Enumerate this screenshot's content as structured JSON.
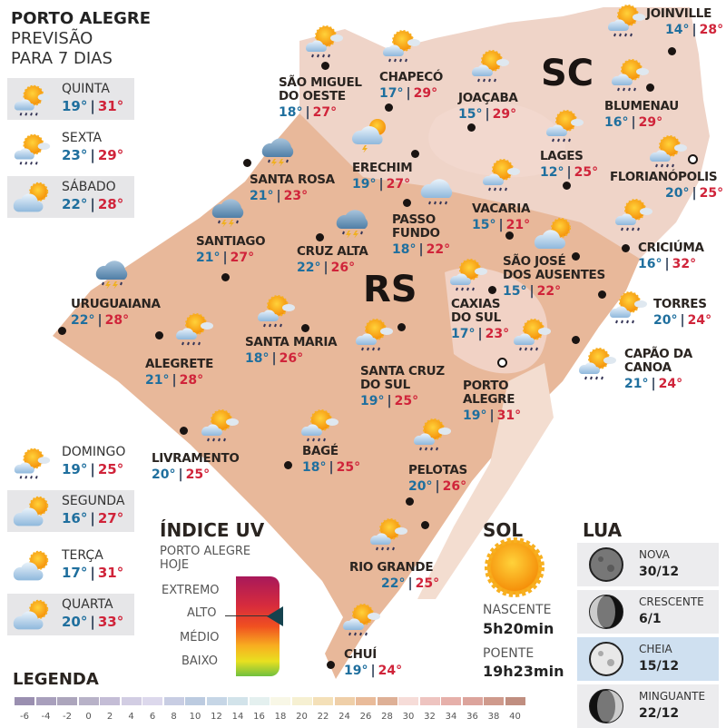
{
  "header": {
    "line1": "PORTO ALEGRE",
    "line2": "PREVISÃO",
    "line3": "PARA 7 DIAS"
  },
  "forecast": [
    {
      "day": "QUINTA",
      "min": "19°",
      "max": "31°",
      "icon": "sun-cloud-rain"
    },
    {
      "day": "SEXTA",
      "min": "23°",
      "max": "29°",
      "icon": "sun-cloud-rain"
    },
    {
      "day": "SÁBADO",
      "min": "22°",
      "max": "28°",
      "icon": "cloud-sun"
    },
    {
      "day": "DOMINGO",
      "min": "19°",
      "max": "25°",
      "icon": "sun-cloud-rain"
    },
    {
      "day": "SEGUNDA",
      "min": "16°",
      "max": "27°",
      "icon": "cloud-sun"
    },
    {
      "day": "TERÇA",
      "min": "17°",
      "max": "31°",
      "icon": "cloud-sun"
    },
    {
      "day": "QUARTA",
      "min": "20°",
      "max": "33°",
      "icon": "cloud-sun"
    }
  ],
  "states": {
    "sc": "SC",
    "rs": "RS"
  },
  "cities": [
    {
      "name": [
        "SÃO MIGUEL",
        "DO OESTE"
      ],
      "min": "18°",
      "max": "27°",
      "icon": "sun-cloud-rain"
    },
    {
      "name": [
        "CHAPECÓ"
      ],
      "min": "17°",
      "max": "29°",
      "icon": "sun-cloud-rain"
    },
    {
      "name": [
        "JOAÇABA"
      ],
      "min": "15°",
      "max": "29°",
      "icon": "sun-cloud-rain"
    },
    {
      "name": [
        "JOINVILLE"
      ],
      "min": "14°",
      "max": "28°",
      "icon": "sun-cloud-rain"
    },
    {
      "name": [
        "BLUMENAU"
      ],
      "min": "16°",
      "max": "29°",
      "icon": "sun-cloud-rain"
    },
    {
      "name": [
        "LAGES"
      ],
      "min": "12°",
      "max": "25°",
      "icon": "sun-cloud-rain"
    },
    {
      "name": [
        "FLORIANÓPOLIS"
      ],
      "min": "20°",
      "max": "25°",
      "icon": "sun-cloud-rain"
    },
    {
      "name": [
        "ERECHIM"
      ],
      "min": "19°",
      "max": "27°",
      "icon": "cloud-sun-storm"
    },
    {
      "name": [
        "SANTA ROSA"
      ],
      "min": "21°",
      "max": "23°",
      "icon": "cloud-storm"
    },
    {
      "name": [
        "PASSO",
        "FUNDO"
      ],
      "min": "18°",
      "max": "22°",
      "icon": "cloud-rain"
    },
    {
      "name": [
        "VACARIA"
      ],
      "min": "15°",
      "max": "21°",
      "icon": "sun-cloud-rain"
    },
    {
      "name": [
        "SANTIAGO"
      ],
      "min": "21°",
      "max": "27°",
      "icon": "cloud-storm"
    },
    {
      "name": [
        "CRUZ ALTA"
      ],
      "min": "22°",
      "max": "26°",
      "icon": "cloud-storm"
    },
    {
      "name": [
        "SÃO JOSÉ",
        "DOS AUSENTES"
      ],
      "min": "15°",
      "max": "22°",
      "icon": "cloud-sun"
    },
    {
      "name": [
        "CRICIÚMA"
      ],
      "min": "16°",
      "max": "32°",
      "icon": "sun-cloud-rain"
    },
    {
      "name": [
        "URUGUAIANA"
      ],
      "min": "22°",
      "max": "28°",
      "icon": "cloud-storm"
    },
    {
      "name": [
        "CAXIAS",
        "DO SUL"
      ],
      "min": "17°",
      "max": "23°",
      "icon": "sun-cloud-rain"
    },
    {
      "name": [
        "TORRES"
      ],
      "min": "20°",
      "max": "24°",
      "icon": "sun-cloud-rain"
    },
    {
      "name": [
        "ALEGRETE"
      ],
      "min": "21°",
      "max": "28°",
      "icon": "sun-cloud-rain"
    },
    {
      "name": [
        "SANTA MARIA"
      ],
      "min": "18°",
      "max": "26°",
      "icon": "sun-cloud-rain"
    },
    {
      "name": [
        "SANTA CRUZ",
        "DO SUL"
      ],
      "min": "19°",
      "max": "25°",
      "icon": "sun-cloud-rain"
    },
    {
      "name": [
        "CAPÃO DA",
        "CANOA"
      ],
      "min": "21°",
      "max": "24°",
      "icon": "sun-cloud-rain"
    },
    {
      "name": [
        "PORTO",
        "ALEGRE"
      ],
      "min": "19°",
      "max": "31°",
      "icon": "sun-cloud-rain"
    },
    {
      "name": [
        "LIVRAMENTO"
      ],
      "min": "20°",
      "max": "25°",
      "icon": "sun-cloud-rain"
    },
    {
      "name": [
        "BAGÉ"
      ],
      "min": "18°",
      "max": "25°",
      "icon": "sun-cloud-rain"
    },
    {
      "name": [
        "PELOTAS"
      ],
      "min": "20°",
      "max": "26°",
      "icon": "sun-cloud-rain"
    },
    {
      "name": [
        "RIO GRANDE"
      ],
      "min": "22°",
      "max": "25°",
      "icon": "sun-cloud-rain"
    },
    {
      "name": [
        "CHUÍ"
      ],
      "min": "19°",
      "max": "24°",
      "icon": "sun-cloud-rain"
    }
  ],
  "uv": {
    "title": "ÍNDICE UV",
    "subtitle1": "PORTO ALEGRE",
    "subtitle2": "HOJE",
    "levels": [
      "EXTREMO",
      "ALTO",
      "MÉDIO",
      "BAIXO"
    ],
    "current": "ALTO"
  },
  "sun": {
    "title": "SOL",
    "rise_label": "NASCENTE",
    "rise": "5h20min",
    "set_label": "POENTE",
    "set": "19h23min"
  },
  "moon": {
    "title": "LUA",
    "phases": [
      {
        "name": "NOVA",
        "date": "30/12",
        "phase": "new"
      },
      {
        "name": "CRESCENTE",
        "date": "6/1",
        "phase": "first-quarter"
      },
      {
        "name": "CHEIA",
        "date": "15/12",
        "phase": "full",
        "highlight": true
      },
      {
        "name": "MINGUANTE",
        "date": "22/12",
        "phase": "last-quarter"
      }
    ]
  },
  "legend": {
    "title": "LEGENDA",
    "ticks": [
      "-6",
      "-4",
      "-2",
      "0",
      "2",
      "4",
      "6",
      "8",
      "10",
      "12",
      "14",
      "16",
      "18",
      "20",
      "22",
      "24",
      "26",
      "28",
      "30",
      "32",
      "34",
      "36",
      "38",
      "40"
    ],
    "colors": [
      "#9a8fb0",
      "#a89fbc",
      "#aca5bc",
      "#b8b2c8",
      "#c4bdd6",
      "#d2cde3",
      "#dcd8ec",
      "#c8cde3",
      "#bccbe0",
      "#c6d6e6",
      "#d2e3ea",
      "#e4f0ef",
      "#f8f7e6",
      "#f6f0d2",
      "#f4e0b8",
      "#efcfa8",
      "#e9bb9a",
      "#deb096",
      "#f6dcd8",
      "#eec4c0",
      "#e6b0aa",
      "#dca49c",
      "#cf9a8c",
      "#c08e80"
    ]
  },
  "colors": {
    "min_temp": "#1f6f9e",
    "max_temp": "#d0243a",
    "map_fill": "#e8b89a",
    "highlight": "#cfe0f0"
  }
}
